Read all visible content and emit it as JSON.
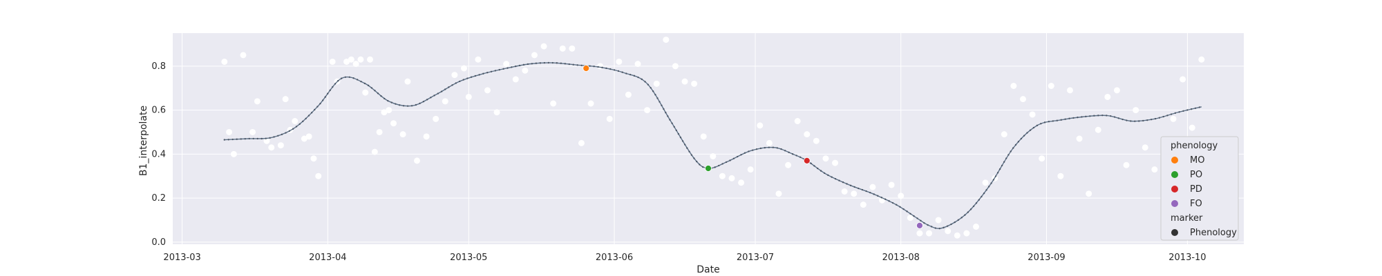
{
  "chart_data": {
    "type": "scatter",
    "title": "",
    "xlabel": "Date",
    "ylabel": "B1_interpolate",
    "x_ticks": [
      "2013-03",
      "2013-04",
      "2013-05",
      "2013-06",
      "2013-07",
      "2013-08",
      "2013-09",
      "2013-10"
    ],
    "xlim": [
      "2013-02-27",
      "2013-10-13"
    ],
    "y_ticks": [
      0.0,
      0.2,
      0.4,
      0.6,
      0.8
    ],
    "ylim": [
      -0.01,
      0.95
    ],
    "grid": true,
    "legend_position": "lower-right",
    "style": {
      "background": "#eaeaf2",
      "grid_color": "#ffffff",
      "line_color": "#5a6e85",
      "marker_color": "#4c5766",
      "raw_point_color": "#ffffff"
    },
    "raw_series": {
      "x": [
        "2013-03-10",
        "2013-03-11",
        "2013-03-12",
        "2013-03-14",
        "2013-03-16",
        "2013-03-17",
        "2013-03-19",
        "2013-03-20",
        "2013-03-22",
        "2013-03-23",
        "2013-03-24",
        "2013-03-25",
        "2013-03-27",
        "2013-03-28",
        "2013-03-29",
        "2013-03-30",
        "2013-04-02",
        "2013-04-03",
        "2013-04-05",
        "2013-04-06",
        "2013-04-07",
        "2013-04-08",
        "2013-04-09",
        "2013-04-10",
        "2013-04-11",
        "2013-04-12",
        "2013-04-13",
        "2013-04-14",
        "2013-04-15",
        "2013-04-17",
        "2013-04-18",
        "2013-04-20",
        "2013-04-22",
        "2013-04-24",
        "2013-04-26",
        "2013-04-28",
        "2013-04-30",
        "2013-05-01",
        "2013-05-03",
        "2013-05-05",
        "2013-05-07",
        "2013-05-09",
        "2013-05-11",
        "2013-05-13",
        "2013-05-15",
        "2013-05-17",
        "2013-05-19",
        "2013-05-21",
        "2013-05-23",
        "2013-05-25",
        "2013-05-27",
        "2013-05-29",
        "2013-05-31",
        "2013-06-02",
        "2013-06-04",
        "2013-06-06",
        "2013-06-08",
        "2013-06-10",
        "2013-06-12",
        "2013-06-14",
        "2013-06-16",
        "2013-06-18",
        "2013-06-20",
        "2013-06-22",
        "2013-06-24",
        "2013-06-26",
        "2013-06-28",
        "2013-06-30",
        "2013-07-02",
        "2013-07-04",
        "2013-07-06",
        "2013-07-08",
        "2013-07-10",
        "2013-07-12",
        "2013-07-14",
        "2013-07-16",
        "2013-07-18",
        "2013-07-20",
        "2013-07-22",
        "2013-07-24",
        "2013-07-26",
        "2013-07-28",
        "2013-07-30",
        "2013-08-01",
        "2013-08-03",
        "2013-08-05",
        "2013-08-07",
        "2013-08-09",
        "2013-08-11",
        "2013-08-13",
        "2013-08-15",
        "2013-08-17",
        "2013-08-19",
        "2013-08-21",
        "2013-08-23",
        "2013-08-25",
        "2013-08-27",
        "2013-08-29",
        "2013-08-31",
        "2013-09-02",
        "2013-09-04",
        "2013-09-06",
        "2013-09-08",
        "2013-09-10",
        "2013-09-12",
        "2013-09-14",
        "2013-09-16",
        "2013-09-18",
        "2013-09-20",
        "2013-09-22",
        "2013-09-24",
        "2013-09-26",
        "2013-09-28",
        "2013-09-30",
        "2013-10-02",
        "2013-10-04"
      ],
      "y": [
        0.82,
        0.5,
        0.4,
        0.85,
        0.5,
        0.64,
        0.46,
        0.43,
        0.44,
        0.65,
        0.51,
        0.55,
        0.47,
        0.48,
        0.38,
        0.3,
        0.82,
        0.73,
        0.82,
        0.83,
        0.81,
        0.83,
        0.68,
        0.83,
        0.41,
        0.5,
        0.59,
        0.6,
        0.54,
        0.49,
        0.73,
        0.37,
        0.48,
        0.56,
        0.64,
        0.76,
        0.79,
        0.66,
        0.83,
        0.69,
        0.59,
        0.81,
        0.74,
        0.78,
        0.85,
        0.89,
        0.63,
        0.88,
        0.88,
        0.45,
        0.63,
        0.8,
        0.56,
        0.82,
        0.67,
        0.81,
        0.6,
        0.72,
        0.92,
        0.8,
        0.73,
        0.72,
        0.48,
        0.39,
        0.3,
        0.29,
        0.27,
        0.33,
        0.53,
        0.45,
        0.22,
        0.35,
        0.55,
        0.49,
        0.46,
        0.38,
        0.36,
        0.23,
        0.22,
        0.17,
        0.25,
        0.19,
        0.26,
        0.21,
        0.11,
        0.04,
        0.04,
        0.1,
        0.05,
        0.03,
        0.04,
        0.07,
        0.27,
        0.29,
        0.49,
        0.71,
        0.65,
        0.58,
        0.38,
        0.71,
        0.3,
        0.69,
        0.47,
        0.22,
        0.51,
        0.66,
        0.69,
        0.35,
        0.6,
        0.43,
        0.33,
        0.46,
        0.56,
        0.74,
        0.52,
        0.83
      ]
    },
    "interpolated_series": {
      "x": [
        "2013-03-10",
        "2013-03-15",
        "2013-03-20",
        "2013-03-25",
        "2013-03-30",
        "2013-04-04",
        "2013-04-09",
        "2013-04-14",
        "2013-04-19",
        "2013-04-24",
        "2013-04-29",
        "2013-05-04",
        "2013-05-09",
        "2013-05-14",
        "2013-05-19",
        "2013-05-24",
        "2013-05-29",
        "2013-06-03",
        "2013-06-08",
        "2013-06-13",
        "2013-06-18",
        "2013-06-21",
        "2013-06-25",
        "2013-06-30",
        "2013-07-05",
        "2013-07-09",
        "2013-07-12",
        "2013-07-16",
        "2013-07-21",
        "2013-07-26",
        "2013-07-31",
        "2013-08-04",
        "2013-08-07",
        "2013-08-10",
        "2013-08-15",
        "2013-08-20",
        "2013-08-25",
        "2013-08-30",
        "2013-09-04",
        "2013-09-09",
        "2013-09-14",
        "2013-09-19",
        "2013-09-24",
        "2013-09-29",
        "2013-10-04"
      ],
      "y": [
        0.465,
        0.47,
        0.475,
        0.52,
        0.62,
        0.745,
        0.72,
        0.64,
        0.62,
        0.67,
        0.73,
        0.765,
        0.79,
        0.81,
        0.815,
        0.805,
        0.795,
        0.77,
        0.72,
        0.55,
        0.38,
        0.335,
        0.365,
        0.415,
        0.43,
        0.4,
        0.37,
        0.31,
        0.26,
        0.22,
        0.17,
        0.115,
        0.075,
        0.065,
        0.13,
        0.26,
        0.43,
        0.53,
        0.555,
        0.57,
        0.575,
        0.55,
        0.56,
        0.59,
        0.615
      ]
    },
    "phenology": [
      {
        "name": "MO",
        "x": "2013-05-26",
        "y": 0.79,
        "color": "#ff7f0e"
      },
      {
        "name": "PO",
        "x": "2013-06-21",
        "y": 0.335,
        "color": "#2ca02c"
      },
      {
        "name": "PD",
        "x": "2013-07-12",
        "y": 0.37,
        "color": "#d62728"
      },
      {
        "name": "FO",
        "x": "2013-08-05",
        "y": 0.075,
        "color": "#9467bd"
      }
    ],
    "legend": {
      "title": "phenology",
      "items": [
        "MO",
        "PO",
        "PD",
        "FO"
      ],
      "marker_title": "marker",
      "marker_item": "Phenology",
      "marker_color": "#333333"
    }
  }
}
